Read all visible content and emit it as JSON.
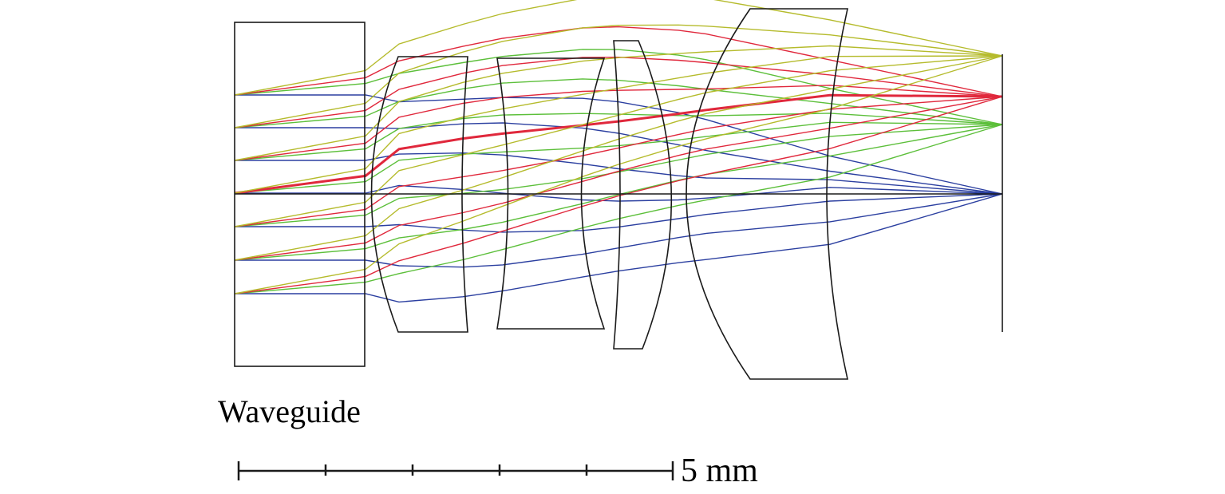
{
  "labels": {
    "waveguide": "Waveguide",
    "scale": "5 mm"
  },
  "colors": {
    "outline": "#1a1a1a",
    "field_0": "#2b3fa0",
    "field_1": "#5cbf3a",
    "field_2": "#e0283c",
    "field_3": "#b5bb2c"
  },
  "fields": [
    "field_0",
    "field_1",
    "field_2",
    "field_3"
  ]
}
